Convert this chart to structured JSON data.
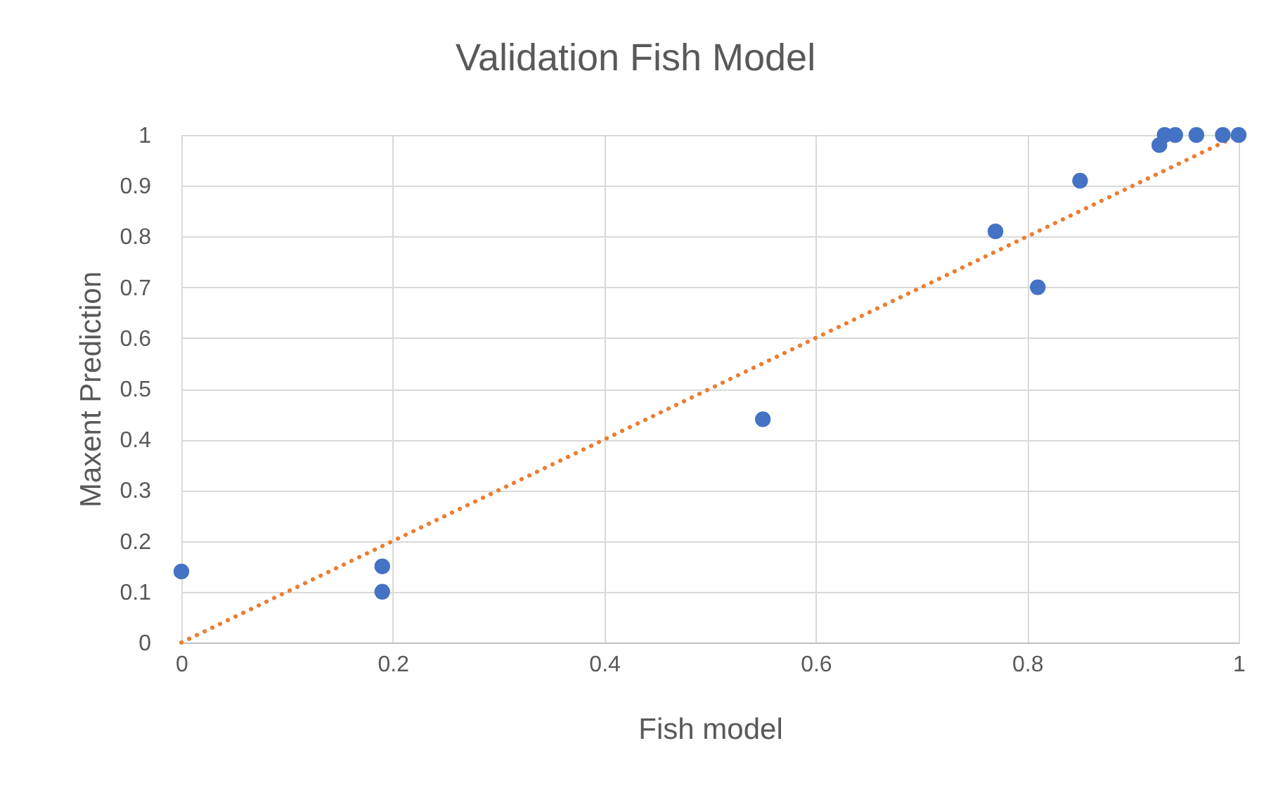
{
  "chart_data": {
    "type": "scatter",
    "title": "Validation Fish Model",
    "xlabel": "Fish model",
    "ylabel": "Maxent Prediction",
    "xlim": [
      0,
      1
    ],
    "ylim": [
      0,
      1
    ],
    "xticks": [
      0,
      0.2,
      0.4,
      0.6,
      0.8,
      1
    ],
    "yticks": [
      0,
      0.1,
      0.2,
      0.3,
      0.4,
      0.5,
      0.6,
      0.7,
      0.8,
      0.9,
      1
    ],
    "grid": true,
    "marker": "circle",
    "series": [
      {
        "type": "scatter",
        "color": "#4472c4",
        "x": [
          0,
          0.19,
          0.19,
          0.55,
          0.77,
          0.81,
          0.85,
          0.93,
          0.94,
          0.925,
          0.96,
          0.985,
          1
        ],
        "values": [
          0.14,
          0.15,
          0.1,
          0.44,
          0.81,
          0.7,
          0.91,
          1,
          1,
          0.98,
          1,
          1,
          1
        ]
      },
      {
        "type": "line",
        "color": "#ed7d31",
        "line_style": "dotted",
        "marker": "none",
        "x": [
          0,
          1
        ],
        "values": [
          0,
          1
        ]
      }
    ]
  }
}
